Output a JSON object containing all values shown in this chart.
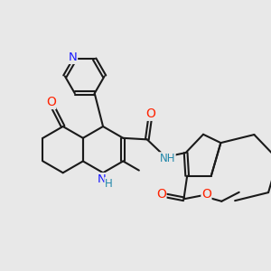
{
  "bg_color": "#e8e8e8",
  "bond_color": "#1a1a1a",
  "bond_width": 1.5,
  "dbo": 0.06,
  "atom_colors": {
    "N": "#1a1aff",
    "O": "#ff2200",
    "S": "#bbaa00",
    "NH_blue": "#1a1aff",
    "NH_teal": "#2288aa",
    "C": "#1a1a1a"
  },
  "font_size": 8.5
}
